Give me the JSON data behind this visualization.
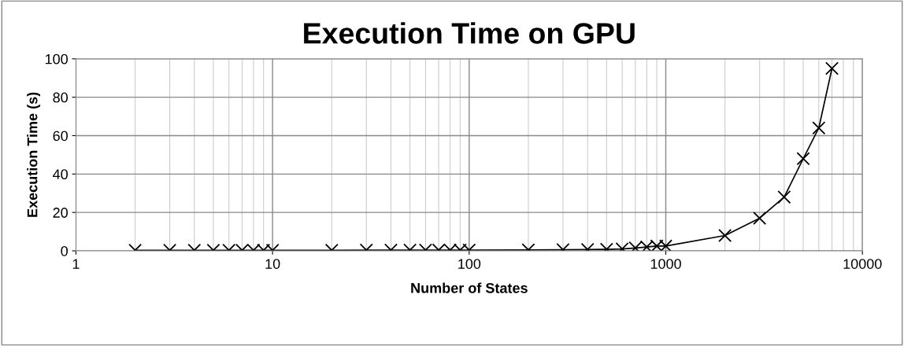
{
  "chart_data": {
    "type": "line",
    "title": "Execution Time on GPU",
    "xlabel": "Number of States",
    "ylabel": "Execution Time (s)",
    "x": [
      2,
      3,
      4,
      5,
      6,
      7,
      8,
      9,
      10,
      20,
      30,
      40,
      50,
      60,
      70,
      80,
      90,
      100,
      200,
      300,
      400,
      500,
      600,
      700,
      800,
      900,
      1000,
      2000,
      3000,
      4000,
      5000,
      6000,
      7000
    ],
    "series": [
      {
        "color": "#000000",
        "values": [
          0.3,
          0.3,
          0.3,
          0.3,
          0.3,
          0.3,
          0.3,
          0.3,
          0.3,
          0.3,
          0.4,
          0.4,
          0.4,
          0.4,
          0.4,
          0.4,
          0.4,
          0.4,
          0.5,
          0.6,
          0.7,
          0.8,
          1,
          1.5,
          2,
          2.5,
          2.5,
          8,
          17,
          28,
          48,
          64,
          95
        ]
      }
    ],
    "log": "x",
    "xlim": [
      1,
      10000
    ],
    "xticks": [
      1,
      10,
      100,
      1000,
      10000
    ],
    "ylim": [
      0,
      100
    ],
    "yticks": [
      0,
      20,
      40,
      60,
      80,
      100
    ],
    "grid": true,
    "marker": "cross",
    "line_style": "solid",
    "legend": false
  }
}
